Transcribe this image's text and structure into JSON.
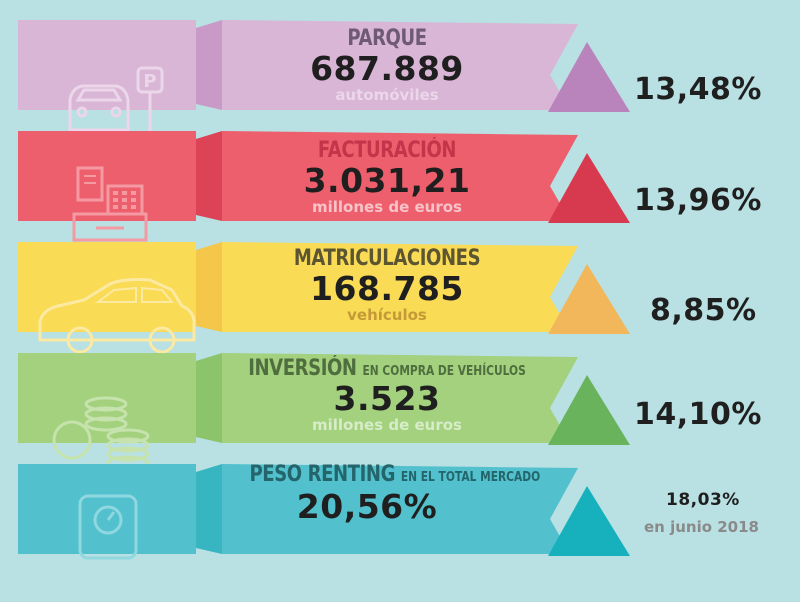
{
  "rows": [
    {
      "title": "PARQUE",
      "title_sub": "",
      "value": "687.889",
      "unit": "automóviles",
      "change": "13,48%",
      "note": "",
      "colors": {
        "band": "#d9b5d6",
        "band_edge": "#c99ac7",
        "arrow": "#b983bb",
        "icon": "#ebd6ea",
        "title": "#6e5a72",
        "unit": "#ecd6ea"
      },
      "icon": "car-parking-icon"
    },
    {
      "title": "FACTURACIÓN",
      "title_sub": "",
      "value": "3.031,21",
      "unit": "millones de euros",
      "change": "13,96%",
      "note": "",
      "colors": {
        "band": "#ee5f6d",
        "band_edge": "#dc4356",
        "arrow": "#d73a4f",
        "icon": "#f49aa3",
        "title": "#c4344a",
        "unit": "#f7c3c8"
      },
      "icon": "cash-register-icon"
    },
    {
      "title": "MATRICULACIONES",
      "title_sub": "",
      "value": "168.785",
      "unit": "vehículos",
      "change": "8,85%",
      "note": "",
      "colors": {
        "band": "#f9db55",
        "band_edge": "#f4c64a",
        "arrow": "#f2b75a",
        "icon": "#fce9a2",
        "title": "#5c5532",
        "unit": "#c49a38"
      },
      "icon": "car-icon"
    },
    {
      "title": "INVERSIÓN",
      "title_sub": "EN COMPRA DE VEHÍCULOS",
      "value": "3.523",
      "unit": "millones de euros",
      "change": "14,10%",
      "note": "",
      "colors": {
        "band": "#a3d17d",
        "band_edge": "#8cc46c",
        "arrow": "#69b35c",
        "icon": "#c6e3ae",
        "title": "#4f6d3f",
        "unit": "#d7ecc8"
      },
      "icon": "coins-icon"
    },
    {
      "title": "PESO RENTING",
      "title_sub": "EN EL TOTAL MERCADO",
      "value": "20,56%",
      "unit": "",
      "change": "18,03%",
      "note": "en junio 2018",
      "colors": {
        "band": "#52c1cd",
        "band_edge": "#37b5c1",
        "arrow": "#16b1bd",
        "icon": "#8fd8df",
        "title": "#24646b",
        "unit": "#ffffff"
      },
      "icon": "scale-icon"
    }
  ]
}
